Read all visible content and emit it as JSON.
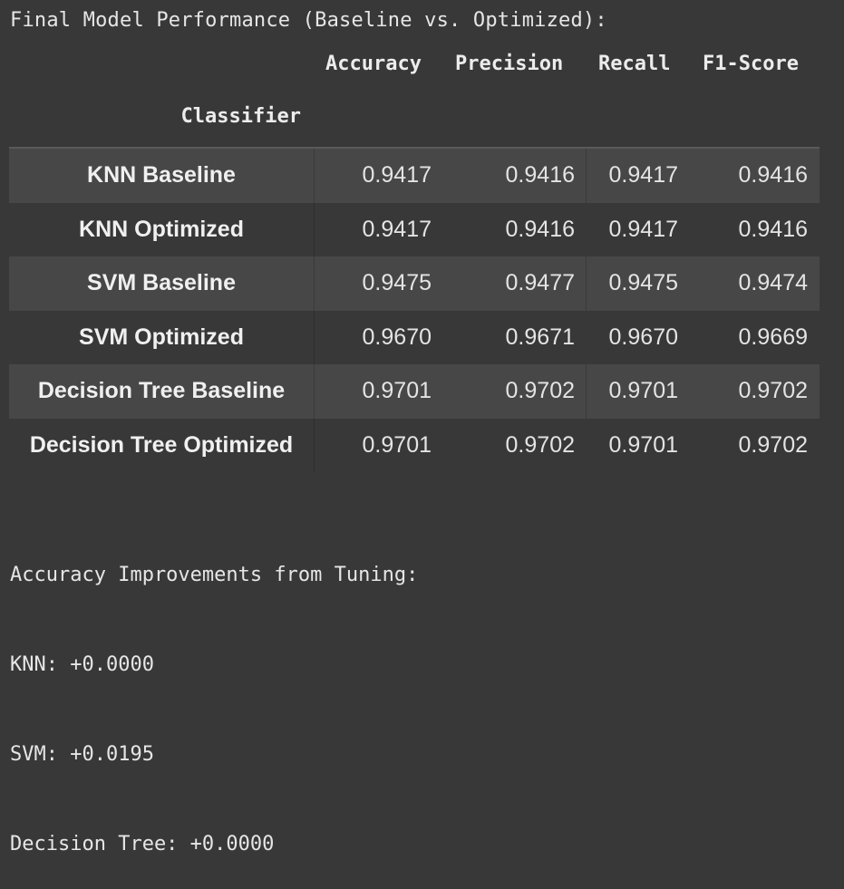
{
  "output": {
    "heading": "Final Model Performance (Baseline vs. Optimized):",
    "table": {
      "index_name": "Classifier",
      "columns": [
        "Accuracy",
        "Precision",
        "Recall",
        "F1-Score"
      ],
      "rows": [
        {
          "label": "KNN Baseline",
          "values": [
            "0.9417",
            "0.9416",
            "0.9417",
            "0.9416"
          ]
        },
        {
          "label": "KNN Optimized",
          "values": [
            "0.9417",
            "0.9416",
            "0.9417",
            "0.9416"
          ]
        },
        {
          "label": "SVM Baseline",
          "values": [
            "0.9475",
            "0.9477",
            "0.9475",
            "0.9474"
          ]
        },
        {
          "label": "SVM Optimized",
          "values": [
            "0.9670",
            "0.9671",
            "0.9670",
            "0.9669"
          ]
        },
        {
          "label": "Decision Tree Baseline",
          "values": [
            "0.9701",
            "0.9702",
            "0.9701",
            "0.9702"
          ]
        },
        {
          "label": "Decision Tree Optimized",
          "values": [
            "0.9701",
            "0.9702",
            "0.9701",
            "0.9702"
          ]
        }
      ]
    },
    "improvements": {
      "title": "Accuracy Improvements from Tuning:",
      "lines": [
        "KNN: +0.0000",
        "SVM: +0.0195",
        "Decision Tree: +0.0000"
      ]
    }
  },
  "colors": {
    "background": "#383838",
    "stripe": "#474747",
    "text": "#e8e8e8"
  }
}
